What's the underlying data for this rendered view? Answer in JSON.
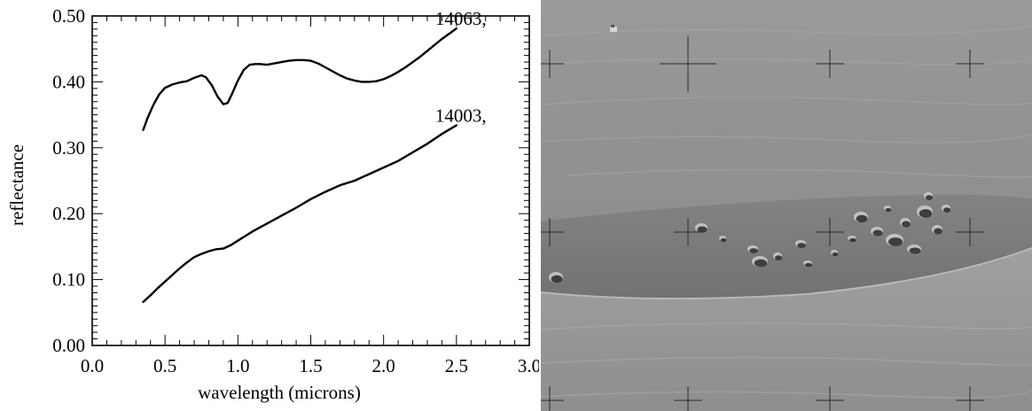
{
  "chart_data": {
    "type": "line",
    "title": "",
    "xlabel": "wavelength (microns)",
    "ylabel": "reflectance",
    "xlim": [
      0.0,
      3.0
    ],
    "ylim": [
      0.0,
      0.5
    ],
    "xticks": [
      "0.0",
      "0.5",
      "1.0",
      "1.5",
      "2.0",
      "2.5",
      "3.0"
    ],
    "yticks": [
      "0.00",
      "0.10",
      "0.20",
      "0.30",
      "0.40",
      "0.50"
    ],
    "grid": false,
    "series": [
      {
        "name": "14063,",
        "x": [
          0.35,
          0.38,
          0.42,
          0.46,
          0.5,
          0.55,
          0.6,
          0.65,
          0.7,
          0.75,
          0.78,
          0.82,
          0.86,
          0.9,
          0.93,
          0.96,
          1.0,
          1.04,
          1.08,
          1.12,
          1.15,
          1.2,
          1.25,
          1.3,
          1.35,
          1.4,
          1.45,
          1.5,
          1.55,
          1.6,
          1.65,
          1.7,
          1.75,
          1.8,
          1.85,
          1.9,
          1.95,
          2.0,
          2.05,
          2.1,
          2.15,
          2.2,
          2.25,
          2.3,
          2.35,
          2.4,
          2.45,
          2.5
        ],
        "y": [
          0.327,
          0.345,
          0.365,
          0.381,
          0.391,
          0.396,
          0.399,
          0.401,
          0.406,
          0.41,
          0.407,
          0.395,
          0.378,
          0.366,
          0.368,
          0.382,
          0.402,
          0.418,
          0.426,
          0.427,
          0.427,
          0.426,
          0.428,
          0.43,
          0.432,
          0.433,
          0.433,
          0.432,
          0.428,
          0.422,
          0.416,
          0.41,
          0.405,
          0.402,
          0.4,
          0.4,
          0.401,
          0.404,
          0.409,
          0.415,
          0.422,
          0.43,
          0.438,
          0.447,
          0.456,
          0.465,
          0.473,
          0.481
        ]
      },
      {
        "name": "14003,",
        "x": [
          0.35,
          0.4,
          0.45,
          0.5,
          0.55,
          0.6,
          0.65,
          0.7,
          0.75,
          0.8,
          0.85,
          0.9,
          0.95,
          1.0,
          1.05,
          1.1,
          1.15,
          1.2,
          1.3,
          1.4,
          1.5,
          1.6,
          1.7,
          1.8,
          1.9,
          2.0,
          2.1,
          2.2,
          2.3,
          2.4,
          2.5
        ],
        "y": [
          0.066,
          0.076,
          0.087,
          0.097,
          0.107,
          0.117,
          0.126,
          0.134,
          0.139,
          0.143,
          0.146,
          0.147,
          0.152,
          0.159,
          0.166,
          0.173,
          0.179,
          0.185,
          0.197,
          0.209,
          0.222,
          0.233,
          0.243,
          0.25,
          0.26,
          0.27,
          0.28,
          0.293,
          0.306,
          0.321,
          0.334
        ]
      }
    ]
  },
  "photo": {
    "colors": {
      "upper_terrain": "#8f8f8f",
      "crater_floor": "#7d7d7d",
      "lower_terrain": "#969696",
      "reseau_cross": "#2a2a2a",
      "boulder_dark": "#1e1e1e",
      "boulder_light": "#d8d8d8"
    }
  }
}
